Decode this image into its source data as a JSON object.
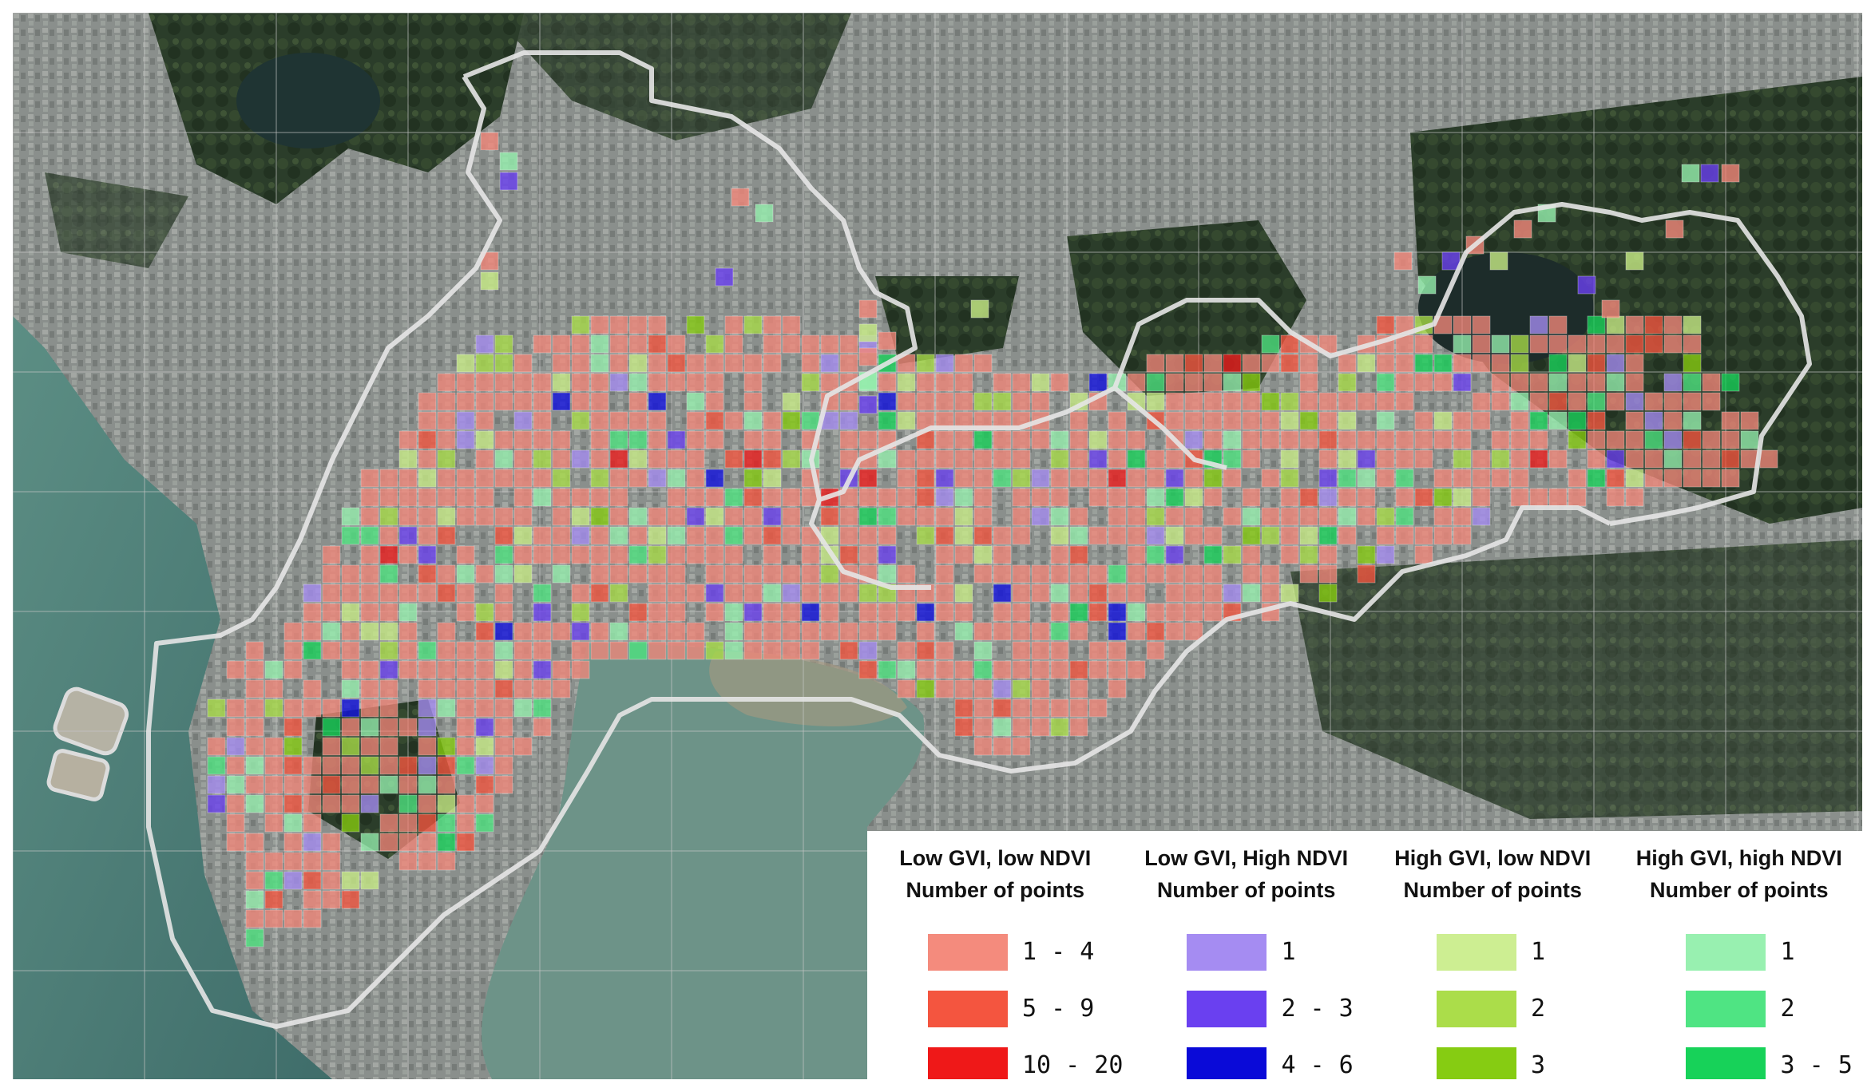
{
  "map": {
    "basemap": "satellite-imagery",
    "grid_colors": {
      "low_gvi_low_ndvi": [
        "#f2877a",
        "#f4553f",
        "#ee1c1c"
      ],
      "low_gvi_high_ndvi": [
        "#a58cf2",
        "#6a40f0",
        "#1010e0"
      ],
      "high_gvi_low_ndvi": [
        "#c8ec86",
        "#a8dc48",
        "#86cc10"
      ],
      "high_gvi_high_ndvi": [
        "#96f0ae",
        "#4ee480",
        "#18d25a"
      ]
    },
    "boundary_color": "#e4e4e4"
  },
  "legend": {
    "groups": [
      {
        "title_line1": "Low GVI, low NDVI",
        "title_line2": "Number of points",
        "items": [
          {
            "label": "1 - 4",
            "color": "#f48b7d"
          },
          {
            "label": "5 - 9",
            "color": "#f4553f"
          },
          {
            "label": "10 - 20",
            "color": "#ef1818"
          }
        ]
      },
      {
        "title_line1": "Low GVI, High NDVI",
        "title_line2": "Number of points",
        "items": [
          {
            "label": "1",
            "color": "#a58cf2"
          },
          {
            "label": "2 - 3",
            "color": "#6a40f0"
          },
          {
            "label": "4 - 6",
            "color": "#0a0ad8"
          }
        ]
      },
      {
        "title_line1": "High GVI, low NDVI",
        "title_line2": "Number of points",
        "items": [
          {
            "label": "1",
            "color": "#cdee92"
          },
          {
            "label": "2",
            "color": "#abdd4a"
          },
          {
            "label": "3",
            "color": "#86cc12"
          }
        ]
      },
      {
        "title_line1": "High GVI, high NDVI",
        "title_line2": "Number of points",
        "items": [
          {
            "label": "1",
            "color": "#98f0b0"
          },
          {
            "label": "2",
            "color": "#4fe483"
          },
          {
            "label": "3 - 5",
            "color": "#17d259"
          }
        ]
      }
    ]
  }
}
